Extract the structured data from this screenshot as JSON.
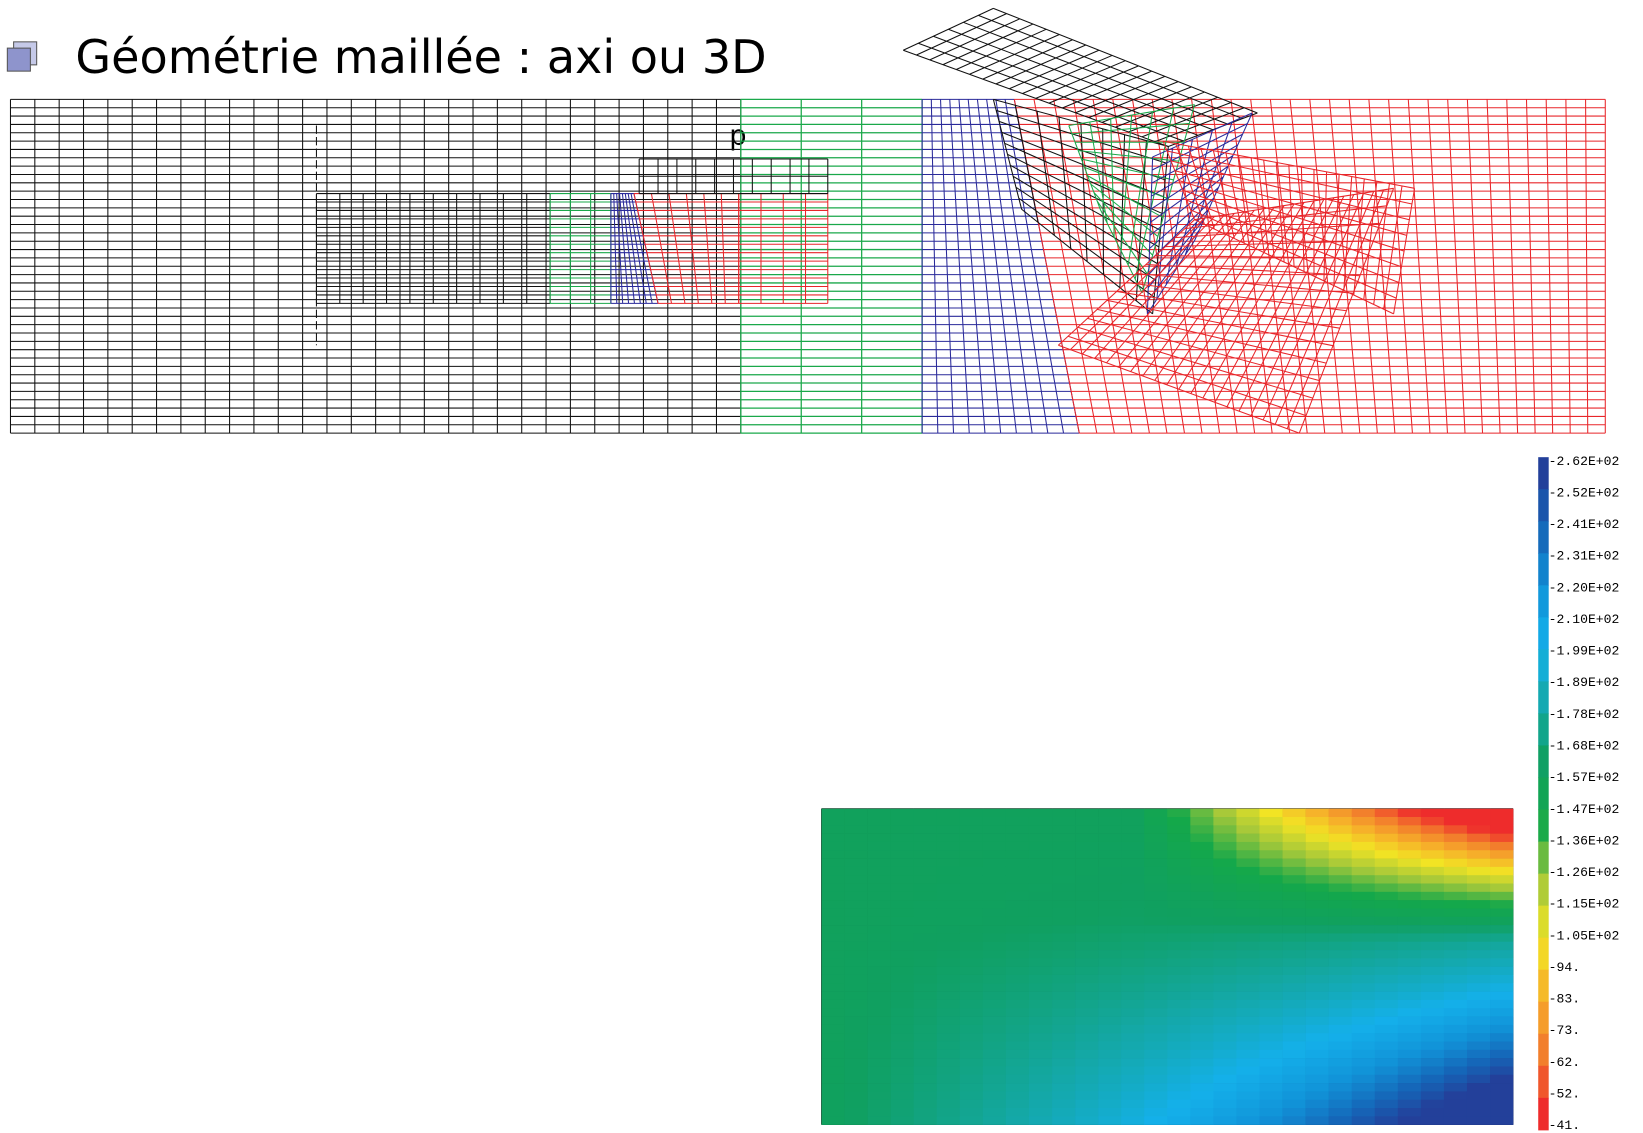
{
  "title": "Géométrie maillée : axi ou 3D",
  "load_label": "p",
  "colorbar": {
    "labels": [
      "-2.62E+02",
      "-2.52E+02",
      "-2.41E+02",
      "-2.31E+02",
      "-2.20E+02",
      "-2.10E+02",
      "-1.99E+02",
      "-1.89E+02",
      "-1.78E+02",
      "-1.68E+02",
      "-1.57E+02",
      "-1.47E+02",
      "-1.36E+02",
      "-1.26E+02",
      "-1.15E+02",
      "-1.05E+02",
      "-94.",
      "-83.",
      "-73.",
      "-62.",
      "-52.",
      "-41."
    ]
  }
}
